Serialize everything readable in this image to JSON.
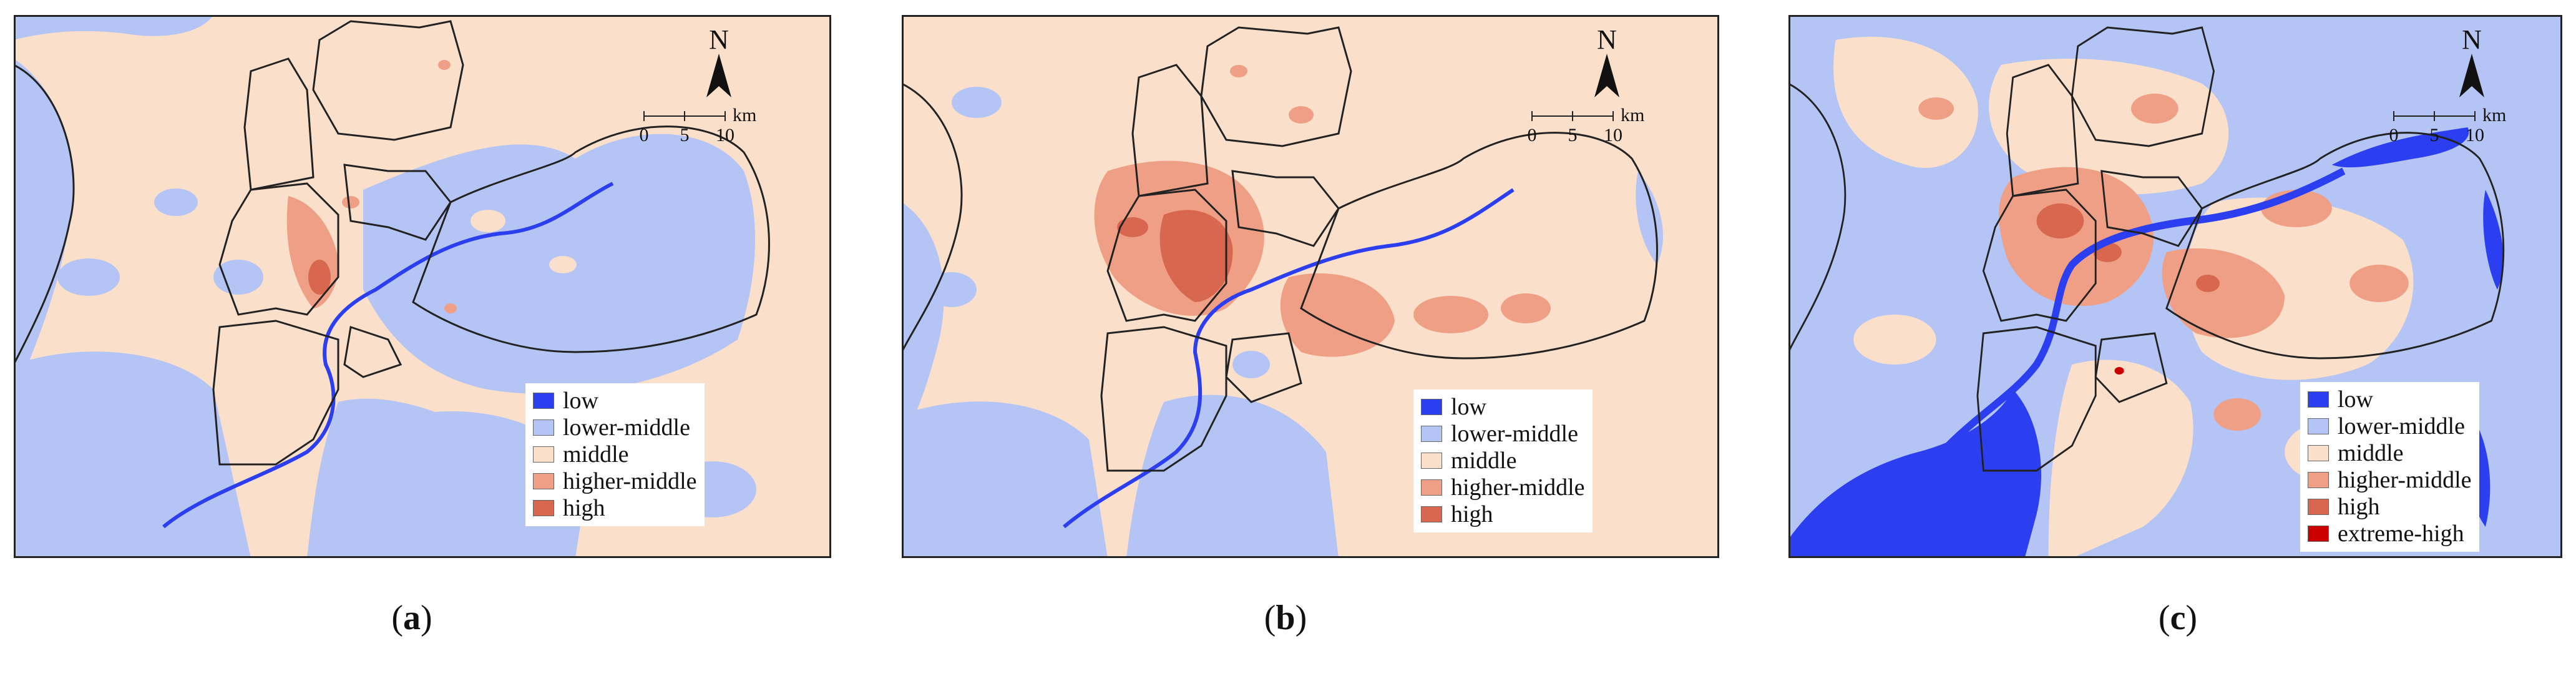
{
  "colors": {
    "low": "#2b3ef0",
    "lower_middle": "#b4c5f5",
    "middle": "#fadfcb",
    "higher_middle": "#ef9f85",
    "high": "#d7684f",
    "extreme_high": "#cc0000"
  },
  "north_label": "N",
  "scale_bar": {
    "ticks": [
      "0",
      "5",
      "10"
    ],
    "unit": "km"
  },
  "panels": [
    {
      "id": "a",
      "caption_open": "(",
      "caption_letter": "a",
      "caption_close": ")",
      "legend": [
        "low",
        "lower-middle",
        "middle",
        "higher-middle",
        "high"
      ]
    },
    {
      "id": "b",
      "caption_open": "(",
      "caption_letter": "b",
      "caption_close": ")",
      "legend": [
        "low",
        "lower-middle",
        "middle",
        "higher-middle",
        "high"
      ]
    },
    {
      "id": "c",
      "caption_open": "(",
      "caption_letter": "c",
      "caption_close": ")",
      "legend": [
        "low",
        "lower-middle",
        "middle",
        "higher-middle",
        "high",
        "extreme-high"
      ]
    }
  ]
}
